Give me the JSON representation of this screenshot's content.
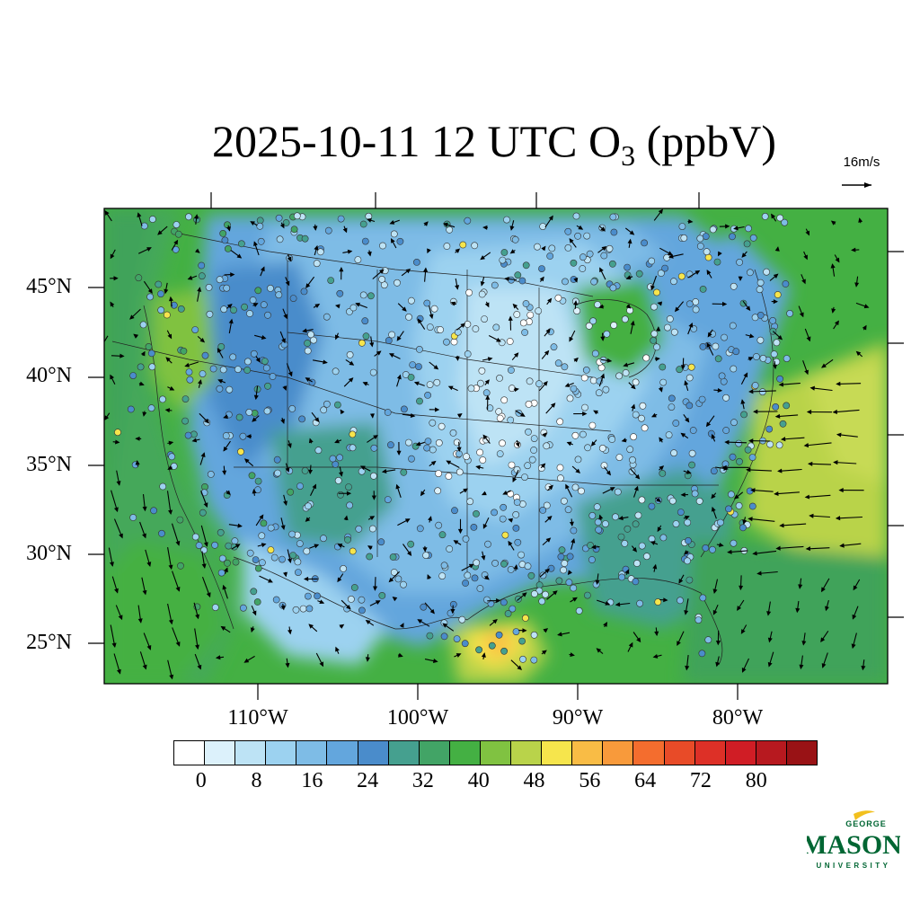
{
  "title": {
    "main": "2025-10-11 12 UTC O",
    "subscript": "3",
    "suffix": " (ppbV)"
  },
  "wind_reference": {
    "label": "16m/s"
  },
  "axes": {
    "lat_labels": [
      "45°N",
      "40°N",
      "35°N",
      "30°N",
      "25°N"
    ],
    "lat_values": [
      45,
      40,
      35,
      30,
      25
    ],
    "lon_labels": [
      "110°W",
      "100°W",
      "90°W",
      "80°W"
    ],
    "lon_values": [
      -110,
      -100,
      -90,
      -80
    ]
  },
  "colorbar": {
    "colors": [
      "#ffffff",
      "#dcf1fb",
      "#bde3f5",
      "#9cd2f0",
      "#7ebce6",
      "#63a6dd",
      "#4a8ccb",
      "#45a08f",
      "#42a466",
      "#44b043",
      "#80c241",
      "#b9d34a",
      "#f6e54c",
      "#f9bc45",
      "#f89a3b",
      "#f46d2e",
      "#e84b28",
      "#dd3027",
      "#d01d25",
      "#b7191f",
      "#991215"
    ],
    "tick_labels": [
      "0",
      "8",
      "16",
      "24",
      "32",
      "40",
      "48",
      "56",
      "64",
      "72",
      "80"
    ]
  },
  "logo": {
    "top": "GEORGE",
    "middle": "MASON",
    "bottom": "UNIVERSITY",
    "color": "#006633",
    "accent": "#f2c01e"
  }
}
